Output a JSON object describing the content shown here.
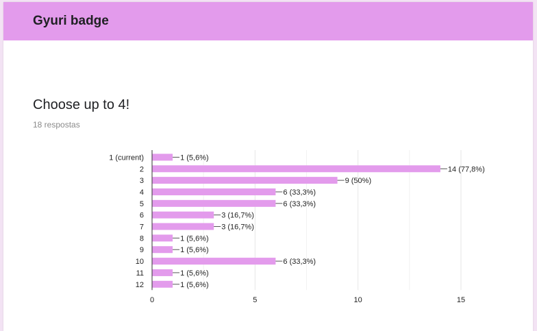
{
  "header": {
    "title": "Gyuri badge"
  },
  "question": {
    "title": "Choose up to 4!",
    "responses": "18 respostas"
  },
  "colors": {
    "header_bg": "#e39bec",
    "bar": "#e39bec",
    "grid": "#eeeeee"
  },
  "chart_data": {
    "type": "bar",
    "orientation": "horizontal",
    "title": "",
    "xlabel": "",
    "ylabel": "",
    "categories": [
      "1 (current)",
      "2",
      "3",
      "4",
      "5",
      "6",
      "7",
      "8",
      "9",
      "10",
      "11",
      "12"
    ],
    "values": [
      1,
      14,
      9,
      6,
      6,
      3,
      3,
      1,
      1,
      6,
      1,
      1
    ],
    "data_labels": [
      "1 (5,6%)",
      "14 (77,8%)",
      "9 (50%)",
      "6 (33,3%)",
      "6 (33,3%)",
      "3 (16,7%)",
      "3 (16,7%)",
      "1 (5,6%)",
      "1 (5,6%)",
      "6 (33,3%)",
      "1 (5,6%)",
      "1 (5,6%)"
    ],
    "xlim": [
      0,
      15
    ],
    "xticks": [
      0,
      5,
      10,
      15
    ],
    "grid": true,
    "legend": "none"
  }
}
